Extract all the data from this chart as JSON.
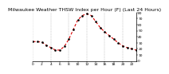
{
  "title": "Milwaukee Weather THSW Index per Hour (F) (Last 24 Hours)",
  "hours": [
    0,
    1,
    2,
    3,
    4,
    5,
    6,
    7,
    8,
    9,
    10,
    11,
    12,
    13,
    14,
    15,
    16,
    17,
    18,
    19,
    20,
    21,
    22,
    23
  ],
  "values": [
    32,
    32,
    31,
    26,
    22,
    18,
    18,
    24,
    36,
    52,
    68,
    75,
    78,
    75,
    65,
    55,
    48,
    42,
    36,
    30,
    25,
    22,
    20,
    18
  ],
  "line_color": "#dd0000",
  "marker_color": "#000000",
  "bg_color": "#ffffff",
  "grid_color": "#999999",
  "ylim": [
    0,
    80
  ],
  "ytick_values": [
    0,
    10,
    20,
    30,
    40,
    50,
    60,
    70,
    80
  ],
  "ytick_labels": [
    "0",
    "10",
    "20",
    "30",
    "40",
    "50",
    "60",
    "70",
    "80"
  ],
  "xlim": [
    0,
    23
  ],
  "xtick_positions": [
    0,
    2,
    4,
    6,
    8,
    10,
    12,
    14,
    16,
    18,
    20,
    22
  ],
  "xtick_labels": [
    "0",
    "2",
    "4",
    "6",
    "8",
    "10",
    "12",
    "14",
    "16",
    "18",
    "20",
    "22"
  ],
  "vgrid_positions": [
    0,
    4,
    8,
    12,
    16,
    20
  ],
  "title_fontsize": 4.5,
  "tick_fontsize": 3.2,
  "line_width": 0.8,
  "marker_size": 1.8
}
